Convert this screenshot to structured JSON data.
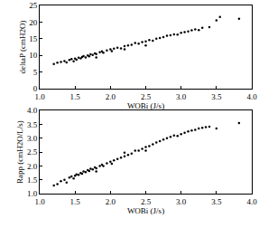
{
  "chart_data": [
    {
      "type": "scatter",
      "xlabel": "WOBi (J/s)",
      "ylabel": "deltaP (cmH2O)",
      "color": "#000000",
      "marker": "dot",
      "grid": false,
      "x": [
        1.2,
        1.25,
        1.3,
        1.35,
        1.38,
        1.42,
        1.45,
        1.48,
        1.5,
        1.52,
        1.55,
        1.58,
        1.6,
        1.62,
        1.65,
        1.68,
        1.7,
        1.72,
        1.75,
        1.78,
        1.8,
        1.85,
        1.88,
        1.9,
        1.95,
        2.0,
        2.02,
        2.05,
        2.1,
        2.15,
        2.2,
        2.25,
        2.3,
        2.35,
        2.4,
        2.45,
        2.5,
        2.55,
        2.6,
        2.65,
        2.7,
        2.75,
        2.8,
        2.85,
        2.9,
        2.95,
        3.0,
        3.05,
        3.1,
        3.15,
        3.2,
        3.25,
        3.3,
        3.4,
        3.5,
        3.55,
        3.82,
        2.5,
        2.2,
        1.8
      ],
      "values": [
        7.4,
        7.8,
        8.0,
        8.3,
        7.9,
        8.6,
        8.9,
        8.2,
        9.0,
        8.7,
        9.3,
        9.1,
        9.5,
        9.8,
        9.4,
        10.0,
        9.7,
        10.3,
        10.1,
        10.6,
        10.4,
        10.9,
        11.2,
        10.8,
        11.5,
        11.8,
        11.3,
        12.0,
        12.3,
        12.1,
        12.8,
        13.0,
        13.2,
        13.7,
        13.5,
        14.0,
        14.2,
        14.6,
        14.4,
        15.0,
        15.2,
        15.5,
        15.9,
        16.0,
        16.3,
        16.2,
        16.8,
        17.0,
        17.2,
        17.5,
        17.8,
        17.6,
        18.3,
        18.5,
        20.5,
        21.5,
        21.0,
        13.0,
        11.8,
        9.4
      ],
      "xlim": [
        1.0,
        4.0
      ],
      "xticks": [
        {
          "value": 1.0,
          "label": "1.0"
        },
        1.5,
        {
          "value": 2.0,
          "label": "2.0"
        },
        2.5,
        {
          "value": 3.0,
          "label": "3.0"
        },
        3.5,
        {
          "value": 4.0,
          "label": "4.0"
        }
      ],
      "ylim": [
        0,
        25
      ],
      "yticks": [
        0,
        5,
        10,
        15,
        20,
        25
      ]
    },
    {
      "type": "scatter",
      "xlabel": "WOBi (J/s)",
      "ylabel": "Rapp (cmH2O/L/s)",
      "color": "#000000",
      "marker": "dot",
      "grid": false,
      "x": [
        1.2,
        1.25,
        1.3,
        1.35,
        1.38,
        1.42,
        1.45,
        1.48,
        1.5,
        1.52,
        1.55,
        1.58,
        1.6,
        1.62,
        1.65,
        1.68,
        1.7,
        1.72,
        1.75,
        1.78,
        1.8,
        1.85,
        1.88,
        1.9,
        1.95,
        2.0,
        2.02,
        2.05,
        2.1,
        2.15,
        2.2,
        2.25,
        2.3,
        2.35,
        2.4,
        2.45,
        2.5,
        2.55,
        2.6,
        2.65,
        2.7,
        2.75,
        2.8,
        2.85,
        2.9,
        2.95,
        3.0,
        3.05,
        3.1,
        3.15,
        3.2,
        3.25,
        3.3,
        3.35,
        3.4,
        3.5,
        3.82,
        2.5,
        2.2,
        1.8
      ],
      "values": [
        1.3,
        1.35,
        1.45,
        1.5,
        1.4,
        1.58,
        1.62,
        1.55,
        1.65,
        1.7,
        1.68,
        1.75,
        1.72,
        1.8,
        1.78,
        1.85,
        1.82,
        1.9,
        1.88,
        1.95,
        1.92,
        2.0,
        2.05,
        2.0,
        2.1,
        2.15,
        2.08,
        2.2,
        2.25,
        2.3,
        2.35,
        2.4,
        2.45,
        2.55,
        2.55,
        2.62,
        2.68,
        2.72,
        2.78,
        2.85,
        2.9,
        2.95,
        3.0,
        3.05,
        3.1,
        3.08,
        3.15,
        3.2,
        3.25,
        3.28,
        3.3,
        3.35,
        3.38,
        3.4,
        3.42,
        3.35,
        3.55,
        2.55,
        2.48,
        1.8
      ],
      "xlim": [
        1.0,
        4.0
      ],
      "xticks": [
        {
          "value": 1.0,
          "label": "1.0"
        },
        1.5,
        {
          "value": 2.0,
          "label": "2.0"
        },
        2.5,
        {
          "value": 3.0,
          "label": "3.0"
        },
        3.5,
        {
          "value": 4.0,
          "label": "4.0"
        }
      ],
      "ylim": [
        1.0,
        4.0
      ],
      "yticks": [
        {
          "value": 1.0,
          "label": "1.0"
        },
        1.5,
        {
          "value": 2.0,
          "label": "2.0"
        },
        2.5,
        {
          "value": 3.0,
          "label": "3.0"
        },
        3.5,
        {
          "value": 4.0,
          "label": "4.0"
        }
      ]
    }
  ]
}
